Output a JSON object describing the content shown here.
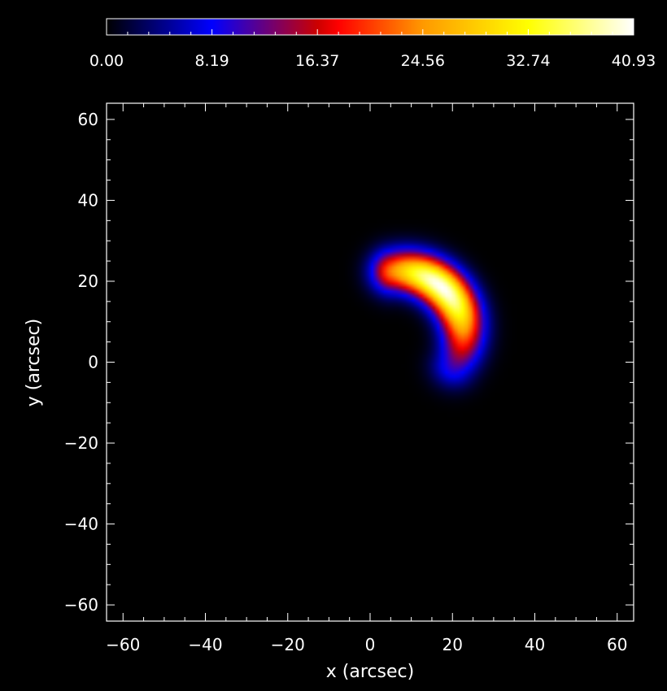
{
  "chart_data": {
    "type": "heatmap",
    "title": "",
    "xlabel": "x (arcsec)",
    "ylabel": "y (arcsec)",
    "xlim": [
      -64,
      64
    ],
    "ylim": [
      -64,
      64
    ],
    "x_ticks": [
      -60,
      -40,
      -20,
      0,
      20,
      40,
      60
    ],
    "y_ticks": [
      -60,
      -40,
      -20,
      0,
      20,
      40,
      60
    ],
    "colorbar": {
      "range": [
        0.0,
        40.93
      ],
      "tick_labels": [
        "0.00",
        "8.19",
        "16.37",
        "24.56",
        "32.74",
        "40.93"
      ],
      "colormap": [
        "#000000",
        "#0000ff",
        "#cc0000",
        "#ff0000",
        "#ff9900",
        "#ffff00",
        "#ffffff"
      ]
    },
    "source": {
      "shape": "crescent",
      "peak_value": 40.93,
      "peak_location": [
        16,
        17
      ],
      "arc_center": [
        7,
        7
      ],
      "arc_radius": 15.5,
      "arc_from_deg": 95,
      "arc_to_deg": -30,
      "extent_x": [
        -8,
        28
      ],
      "extent_y": [
        -6,
        29
      ]
    },
    "grid": false
  }
}
